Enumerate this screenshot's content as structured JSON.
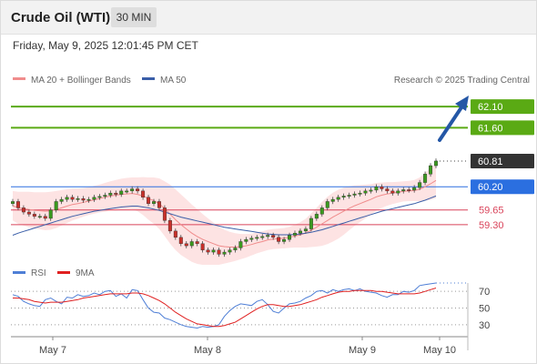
{
  "header": {
    "title": "Crude Oil (WTI)",
    "timeframe": "30 MIN"
  },
  "timestamp": "Friday, May 9, 2025 12:01:45 PM CET",
  "legend": {
    "bollinger": "MA 20 + Bollinger Bands",
    "ma50": "MA 50",
    "credit": "Research © 2025 Trading Central"
  },
  "rsi_legend": {
    "rsi": "RSI",
    "ma9": "9MA"
  },
  "colors": {
    "resistance": "#5aaa14",
    "support": "#d9435a",
    "pivot": "#2b6fe0",
    "current": "#333333",
    "arrow": "#2457a6",
    "ma20": "#f08c8c",
    "ma50": "#3a5ea8",
    "band_fill": "#fde3e3",
    "candle_up": "#3a9a1e",
    "candle_down": "#c8302a",
    "rsi": "#4f7fd6",
    "rsi_ma": "#e02020"
  },
  "levels": [
    {
      "value": 62.1,
      "label": "62.10",
      "kind": "resistance"
    },
    {
      "value": 61.6,
      "label": "61.60",
      "kind": "resistance"
    },
    {
      "value": 60.81,
      "label": "60.81",
      "kind": "current"
    },
    {
      "value": 60.2,
      "label": "60.20",
      "kind": "pivot"
    },
    {
      "value": 59.65,
      "label": "59.65",
      "kind": "support"
    },
    {
      "value": 59.3,
      "label": "59.30",
      "kind": "support"
    }
  ],
  "chart_data": {
    "type": "candlestick",
    "instrument": "Crude Oil (WTI)",
    "interval": "30 MIN",
    "x_ticks": [
      "May 7",
      "May 8",
      "May 9",
      "May 10"
    ],
    "x_tick_positions": [
      0.0,
      1.0,
      2.0,
      2.5
    ],
    "y_range": [
      58.5,
      62.6
    ],
    "close": [
      59.85,
      59.7,
      59.6,
      59.55,
      59.5,
      59.5,
      59.45,
      59.65,
      59.85,
      59.9,
      59.95,
      59.9,
      59.92,
      59.88,
      59.9,
      59.95,
      59.97,
      60.0,
      60.05,
      60.02,
      60.1,
      60.1,
      60.15,
      60.1,
      59.95,
      59.8,
      59.85,
      59.7,
      59.4,
      59.15,
      59.0,
      58.85,
      58.8,
      58.9,
      58.85,
      58.7,
      58.65,
      58.7,
      58.6,
      58.65,
      58.7,
      58.75,
      58.9,
      58.95,
      58.98,
      59.0,
      59.02,
      59.05,
      59.0,
      58.9,
      58.95,
      59.05,
      59.1,
      59.15,
      59.2,
      59.45,
      59.55,
      59.7,
      59.85,
      59.9,
      59.95,
      59.98,
      60.0,
      60.03,
      60.05,
      60.1,
      60.12,
      60.2,
      60.15,
      60.1,
      60.05,
      60.1,
      60.13,
      60.12,
      60.18,
      60.3,
      60.5,
      60.7,
      60.81
    ],
    "ma20": [
      59.75,
      59.7,
      59.68,
      59.66,
      59.64,
      59.63,
      59.62,
      59.63,
      59.66,
      59.7,
      59.74,
      59.78,
      59.8,
      59.83,
      59.86,
      59.89,
      59.92,
      59.95,
      59.98,
      60.0,
      60.02,
      60.03,
      60.04,
      60.02,
      59.98,
      59.92,
      59.87,
      59.8,
      59.68,
      59.55,
      59.42,
      59.3,
      59.2,
      59.1,
      59.02,
      58.95,
      58.9,
      58.85,
      58.8,
      58.78,
      58.77,
      58.77,
      58.78,
      58.8,
      58.83,
      58.87,
      58.9,
      58.94,
      58.96,
      58.97,
      58.98,
      59.0,
      59.03,
      59.06,
      59.1,
      59.17,
      59.24,
      59.32,
      59.4,
      59.48,
      59.55,
      59.62,
      59.69,
      59.75,
      59.8,
      59.85,
      59.9,
      59.96,
      60.0,
      60.03,
      60.05,
      60.07,
      60.09,
      60.1,
      60.11,
      60.14,
      60.2,
      60.27,
      60.35
    ],
    "ma50": [
      59.05,
      59.1,
      59.14,
      59.18,
      59.22,
      59.26,
      59.3,
      59.34,
      59.38,
      59.42,
      59.46,
      59.5,
      59.53,
      59.56,
      59.59,
      59.62,
      59.64,
      59.66,
      59.68,
      59.7,
      59.72,
      59.73,
      59.74,
      59.74,
      59.72,
      59.7,
      59.67,
      59.64,
      59.6,
      59.56,
      59.52,
      59.48,
      59.45,
      59.42,
      59.39,
      59.36,
      59.33,
      59.3,
      59.27,
      59.24,
      59.22,
      59.2,
      59.18,
      59.16,
      59.14,
      59.12,
      59.1,
      59.08,
      59.07,
      59.06,
      59.06,
      59.06,
      59.07,
      59.08,
      59.1,
      59.12,
      59.15,
      59.18,
      59.22,
      59.26,
      59.3,
      59.34,
      59.38,
      59.42,
      59.46,
      59.5,
      59.54,
      59.58,
      59.62,
      59.65,
      59.68,
      59.71,
      59.74,
      59.77,
      59.8,
      59.84,
      59.88,
      59.93,
      59.98
    ],
    "band_width": [
      0.35,
      0.38,
      0.4,
      0.42,
      0.43,
      0.44,
      0.45,
      0.45,
      0.44,
      0.42,
      0.4,
      0.38,
      0.36,
      0.34,
      0.33,
      0.33,
      0.33,
      0.34,
      0.35,
      0.36,
      0.37,
      0.38,
      0.38,
      0.4,
      0.45,
      0.5,
      0.55,
      0.6,
      0.65,
      0.7,
      0.72,
      0.72,
      0.7,
      0.68,
      0.65,
      0.6,
      0.55,
      0.5,
      0.45,
      0.4,
      0.36,
      0.33,
      0.3,
      0.28,
      0.26,
      0.25,
      0.24,
      0.24,
      0.24,
      0.24,
      0.24,
      0.25,
      0.27,
      0.3,
      0.34,
      0.4,
      0.46,
      0.52,
      0.56,
      0.58,
      0.58,
      0.56,
      0.52,
      0.48,
      0.44,
      0.4,
      0.36,
      0.33,
      0.3,
      0.28,
      0.26,
      0.25,
      0.24,
      0.24,
      0.25,
      0.28,
      0.33,
      0.38,
      0.42
    ],
    "rsi": {
      "levels": [
        70,
        50,
        30
      ],
      "range": [
        20,
        80
      ],
      "rsi": [
        66,
        64,
        58,
        55,
        53,
        52,
        60,
        62,
        58,
        55,
        63,
        62,
        66,
        64,
        65,
        68,
        66,
        70,
        71,
        64,
        67,
        62,
        72,
        71,
        60,
        50,
        45,
        44,
        38,
        36,
        33,
        30,
        28,
        27,
        26,
        28,
        27,
        28,
        30,
        40,
        47,
        52,
        55,
        54,
        53,
        58,
        60,
        54,
        46,
        44,
        50,
        55,
        56,
        58,
        62,
        65,
        70,
        71,
        68,
        72,
        70,
        72,
        73,
        71,
        73,
        70,
        69,
        68,
        65,
        63,
        66,
        66,
        70,
        69,
        71,
        77,
        78,
        79,
        80
      ],
      "ma9": [
        62,
        62,
        61,
        60,
        58,
        57,
        56,
        57,
        57,
        57,
        58,
        59,
        60,
        62,
        63,
        64,
        65,
        66,
        67,
        67,
        67,
        67,
        68,
        68,
        67,
        65,
        62,
        59,
        55,
        50,
        45,
        41,
        37,
        34,
        31,
        30,
        29,
        28,
        28,
        29,
        31,
        33,
        37,
        41,
        45,
        49,
        52,
        54,
        54,
        53,
        52,
        52,
        53,
        54,
        56,
        58,
        60,
        63,
        65,
        67,
        69,
        70,
        70,
        71,
        71,
        71,
        71,
        70,
        70,
        69,
        68,
        67,
        67,
        67,
        67,
        68,
        70,
        72,
        74
      ]
    }
  }
}
